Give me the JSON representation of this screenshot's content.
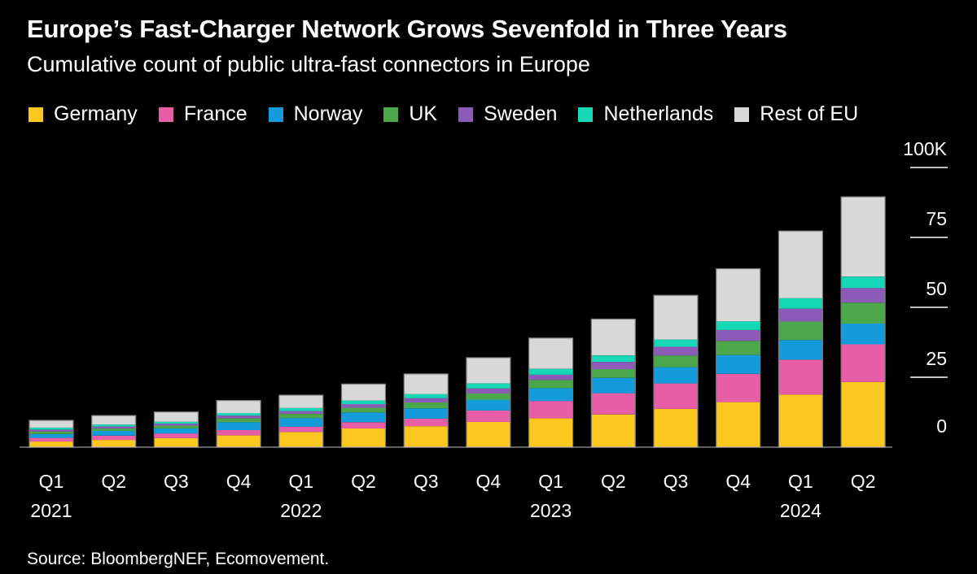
{
  "title": "Europe’s Fast-Charger Network Grows Sevenfold in Three Years",
  "subtitle": "Cumulative count of public ultra-fast connectors in Europe",
  "source": "Source: BloombergNEF, Ecomovement.",
  "colors": {
    "background": "#000000",
    "Germany": "#fcc71e",
    "France": "#e75ea6",
    "Norway": "#139bdb",
    "UK": "#4aa74a",
    "Sweden": "#8c5bb8",
    "Netherlands": "#16d7b6",
    "Rest of EU": "#d8d8d8"
  },
  "chart_data": {
    "type": "bar",
    "stacked": true,
    "categories": [
      "Q1",
      "Q2",
      "Q3",
      "Q4",
      "Q1",
      "Q2",
      "Q3",
      "Q4",
      "Q1",
      "Q2",
      "Q3",
      "Q4",
      "Q1",
      "Q2"
    ],
    "year_labels": [
      {
        "label": "2021",
        "index": 0
      },
      {
        "label": "2022",
        "index": 4
      },
      {
        "label": "2023",
        "index": 8
      },
      {
        "label": "2024",
        "index": 12
      }
    ],
    "y_ticks": [
      "100K",
      "75",
      "50",
      "25",
      "0"
    ],
    "ylim": [
      0,
      100000
    ],
    "grid": false,
    "legend_position": "top",
    "series": [
      {
        "name": "Germany",
        "values": [
          2000,
          2600,
          3200,
          4200,
          5400,
          6700,
          7500,
          9000,
          10300,
          11700,
          13700,
          16100,
          18800,
          23300
        ]
      },
      {
        "name": "France",
        "values": [
          1300,
          1500,
          1700,
          1900,
          1900,
          2200,
          2700,
          4100,
          6200,
          7600,
          9100,
          10100,
          12500,
          13500
        ]
      },
      {
        "name": "Norway",
        "values": [
          1400,
          1700,
          1800,
          2800,
          3100,
          3500,
          3700,
          3900,
          4600,
          5500,
          5800,
          6700,
          7000,
          7400
        ]
      },
      {
        "name": "UK",
        "values": [
          900,
          900,
          1000,
          1400,
          1500,
          1700,
          2100,
          2200,
          2900,
          3100,
          4200,
          5100,
          6600,
          7500
        ]
      },
      {
        "name": "Sweden",
        "values": [
          700,
          700,
          700,
          1000,
          1000,
          1300,
          1500,
          1800,
          1900,
          2600,
          3100,
          3900,
          4600,
          5200
        ]
      },
      {
        "name": "Netherlands",
        "values": [
          700,
          700,
          700,
          900,
          1100,
          1300,
          1500,
          1800,
          2100,
          2300,
          2600,
          3100,
          3800,
          4100
        ]
      },
      {
        "name": "Rest of EU",
        "values": [
          2600,
          3200,
          3500,
          4500,
          4600,
          5900,
          7200,
          9200,
          11000,
          13000,
          15800,
          18800,
          24000,
          28500
        ]
      }
    ]
  }
}
